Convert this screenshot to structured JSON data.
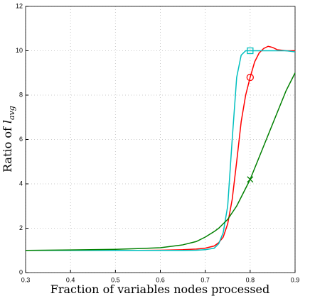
{
  "chart_data": {
    "type": "line",
    "xlabel": "Fraction of variables nodes processed",
    "ylabel": "Ratio of",
    "ylabel_var": "l",
    "ylabel_sub": "avg",
    "xlim": [
      0.3,
      0.9
    ],
    "xticks": [
      0.3,
      0.4,
      0.5,
      0.6,
      0.7,
      0.8,
      0.9
    ],
    "ylim": [
      0,
      12
    ],
    "yticks": [
      0,
      2,
      4,
      6,
      8,
      10,
      12
    ],
    "grid": true,
    "x": [
      0.3,
      0.4,
      0.5,
      0.55,
      0.6,
      0.65,
      0.68,
      0.7,
      0.72,
      0.73,
      0.74,
      0.75,
      0.76,
      0.77,
      0.78,
      0.79,
      0.8,
      0.81,
      0.82,
      0.83,
      0.84,
      0.85,
      0.86,
      0.88,
      0.9
    ],
    "series": [
      {
        "color": "#ff0000",
        "marker": "circle",
        "values": [
          1.0,
          1.0,
          1.0,
          1.0,
          1.01,
          1.03,
          1.06,
          1.1,
          1.2,
          1.35,
          1.6,
          2.2,
          3.3,
          5.0,
          6.8,
          8.0,
          8.8,
          9.5,
          9.9,
          10.1,
          10.2,
          10.15,
          10.05,
          10.0,
          10.0
        ],
        "markers": [
          {
            "x": 0.8,
            "y": 8.8
          }
        ]
      },
      {
        "color": "#00bfbf",
        "marker": "square",
        "values": [
          1.0,
          1.0,
          1.0,
          1.0,
          1.0,
          1.0,
          1.01,
          1.03,
          1.1,
          1.3,
          1.8,
          3.0,
          6.0,
          8.8,
          9.8,
          10.0,
          10.0,
          10.0,
          10.0,
          10.0,
          10.0,
          10.0,
          10.0,
          10.0,
          9.95
        ],
        "markers": [
          {
            "x": 0.8,
            "y": 10.0
          }
        ]
      },
      {
        "color": "#008000",
        "marker": "x",
        "values": [
          1.0,
          1.02,
          1.05,
          1.08,
          1.12,
          1.25,
          1.4,
          1.6,
          1.85,
          2.0,
          2.2,
          2.4,
          2.7,
          3.0,
          3.4,
          3.8,
          4.2,
          4.7,
          5.2,
          5.7,
          6.2,
          6.7,
          7.2,
          8.2,
          9.0
        ],
        "markers": [
          {
            "x": 0.8,
            "y": 4.2
          }
        ]
      }
    ]
  }
}
